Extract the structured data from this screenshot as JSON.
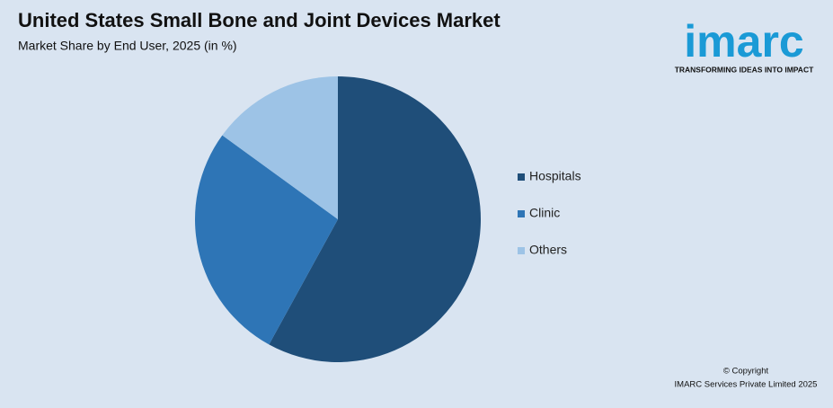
{
  "chart_data": {
    "type": "pie",
    "title": "United States Small Bone and Joint Devices Market",
    "subtitle": "Market Share by End User, 2025 (in %)",
    "categories": [
      "Hospitals",
      "Clinic",
      "Others"
    ],
    "values": [
      58,
      27,
      15
    ],
    "colors": [
      "#1f4e79",
      "#2e75b6",
      "#9dc3e6"
    ]
  },
  "branding": {
    "logo": "imarc",
    "tagline": "TRANSFORMING IDEAS INTO IMPACT"
  },
  "footer": {
    "copyright": "© Copyright",
    "company": "IMARC Services Private Limited 2025"
  }
}
